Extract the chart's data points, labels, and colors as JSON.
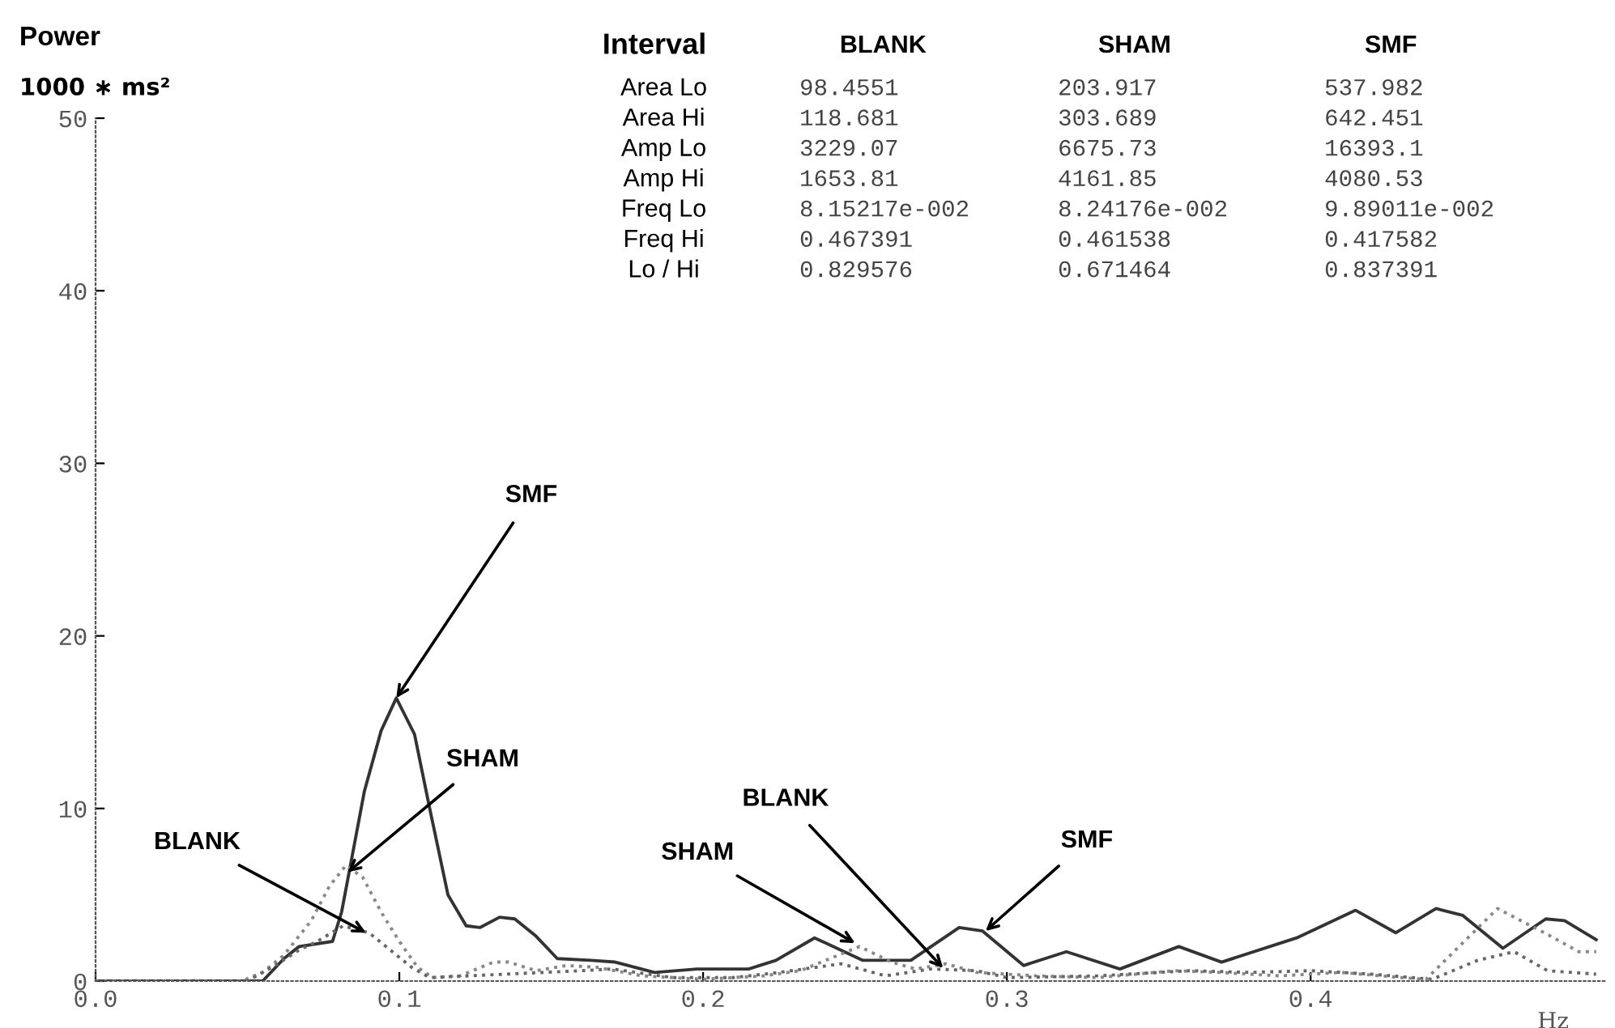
{
  "chart_data": {
    "type": "line",
    "title": "Power",
    "ylabel": "1000 ∗ ms²",
    "xlabel": "Hz",
    "xlim": [
      0,
      0.497
    ],
    "xticks": [
      {
        "value": 0,
        "label": "0.0"
      },
      {
        "value": 0.1,
        "label": "0.1"
      },
      {
        "value": 0.2,
        "label": "0.2"
      },
      {
        "value": 0.3,
        "label": "0.3"
      },
      {
        "value": 0.4,
        "label": "0.4"
      }
    ],
    "ylim": [
      0,
      50
    ],
    "yticks": [
      0,
      10,
      20,
      30,
      40,
      50
    ],
    "grid": false,
    "legend": false,
    "marker": "none",
    "series": [
      {
        "color": "#333333",
        "line_style": "solid",
        "x": [
          0,
          0.055,
          0.062,
          0.067,
          0.078,
          0.081,
          0.0885,
          0.094,
          0.099,
          0.105,
          0.11,
          0.116,
          0.122,
          0.1265,
          0.133,
          0.138,
          0.145,
          0.152,
          0.163,
          0.171,
          0.184,
          0.198,
          0.215,
          0.224,
          0.2367,
          0.2526,
          0.2684,
          0.2843,
          0.292,
          0.3055,
          0.3196,
          0.3372,
          0.3566,
          0.3707,
          0.3954,
          0.4148,
          0.428,
          0.4413,
          0.4501,
          0.4633,
          0.4774,
          0.4836,
          0.494
        ],
        "values": [
          0,
          0,
          1.3,
          2.0,
          2.3,
          4,
          11,
          14.5,
          16.4,
          14.3,
          10,
          5,
          3.2,
          3.1,
          3.7,
          3.6,
          2.6,
          1.3,
          1.2,
          1.1,
          0.5,
          0.7,
          0.7,
          1.2,
          2.5,
          1.2,
          1.2,
          3.1,
          2.9,
          0.9,
          1.7,
          0.7,
          2.0,
          1.1,
          2.5,
          4.1,
          2.8,
          4.2,
          3.8,
          1.9,
          3.6,
          3.5,
          2.4
        ]
      },
      {
        "color": "#888888",
        "line_style": "dotted",
        "x": [
          0,
          0.048,
          0.055,
          0.062,
          0.071,
          0.077,
          0.0824,
          0.088,
          0.094,
          0.1,
          0.106,
          0.111,
          0.12,
          0.131,
          0.136,
          0.145,
          0.155,
          0.165,
          0.18,
          0.2,
          0.22,
          0.232,
          0.2515,
          0.262,
          0.27,
          0.28,
          0.29,
          0.31,
          0.33,
          0.355,
          0.37,
          0.39,
          0.41,
          0.43,
          0.438,
          0.4615,
          0.478,
          0.4883,
          0.494
        ],
        "values": [
          0,
          0,
          0.5,
          1.5,
          3.5,
          5.5,
          6.7,
          6.0,
          4,
          2.3,
          0.8,
          0.2,
          0.3,
          1.1,
          1.1,
          0.6,
          0.9,
          0.8,
          0.3,
          0.1,
          0.3,
          0.6,
          2.0,
          1.1,
          0.7,
          1.0,
          0.5,
          0.3,
          0.2,
          0.6,
          0.5,
          0.3,
          0.5,
          0.2,
          0.1,
          4.2,
          2.7,
          1.7,
          1.7
        ]
      },
      {
        "color": "#666666",
        "line_style": "dotted",
        "x": [
          0,
          0.05,
          0.06,
          0.067,
          0.073,
          0.0815,
          0.09,
          0.097,
          0.104,
          0.11,
          0.16,
          0.17,
          0.19,
          0.21,
          0.225,
          0.2455,
          0.26,
          0.275,
          0.29,
          0.3,
          0.33,
          0.36,
          0.38,
          0.4,
          0.42,
          0.44,
          0.455,
          0.467,
          0.478,
          0.494
        ],
        "values": [
          0,
          0,
          1.0,
          1.8,
          2.3,
          3.2,
          2.8,
          1.8,
          0.8,
          0.2,
          0.6,
          0.7,
          0.2,
          0.2,
          0.5,
          1.0,
          0.3,
          0.7,
          0.6,
          0.2,
          0.3,
          0.6,
          0.5,
          0.6,
          0.4,
          0.1,
          1.2,
          1.7,
          0.6,
          0.4
        ]
      }
    ],
    "annotations": [
      {
        "text": "SMF",
        "x": 0.099,
        "y": 16.4
      },
      {
        "text": "SHAM",
        "x": 0.083,
        "y": 6.3
      },
      {
        "text": "BLANK",
        "x": 0.089,
        "y": 2.8
      },
      {
        "text": "BLANK",
        "x": 0.279,
        "y": 0.75
      },
      {
        "text": "SHAM",
        "x": 0.25,
        "y": 2.2
      },
      {
        "text": "SMF",
        "x": 0.293,
        "y": 2.9
      },
      "Interval",
      "BLANK",
      "SHAM",
      "SMF",
      "Area Lo",
      "98.4551",
      "203.917",
      "537.982",
      "Area Hi",
      "118.681",
      "303.689",
      "642.451",
      "Amp Lo",
      "3229.07",
      "6675.73",
      "16393.1",
      "Amp Hi",
      "1653.81",
      "4161.85",
      "4080.53",
      "Freq Lo",
      "8.15217e-002",
      "8.24176e-002",
      "9.89011e-002",
      "Freq Hi",
      "0.467391",
      "0.461538",
      "0.417582",
      "Lo / Hi",
      "0.829576",
      "0.671464",
      "0.837391"
    ]
  }
}
